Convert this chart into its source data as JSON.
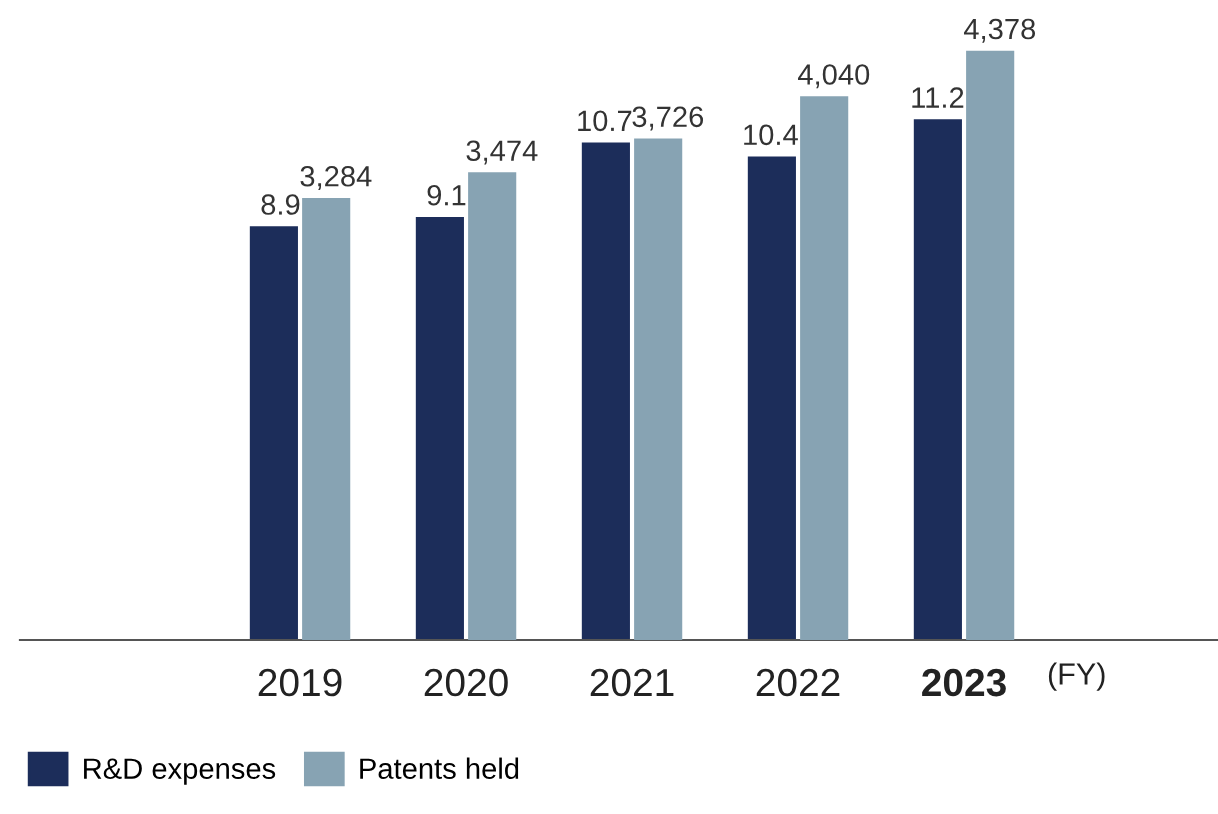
{
  "chart_data": {
    "type": "bar",
    "categories": [
      "2019",
      "2020",
      "2021",
      "2022",
      "2023"
    ],
    "xlabel": "(FY)",
    "series": [
      {
        "name": "R&D expenses",
        "color": "#1c2d5a",
        "values": [
          8.9,
          9.1,
          10.7,
          10.4,
          11.2
        ]
      },
      {
        "name": "Patents held",
        "color": "#87a3b3",
        "axis": "y2",
        "values": [
          3284,
          3474,
          3726,
          4040,
          4378
        ],
        "value_labels": [
          "3,284",
          "3,474",
          "3,726",
          "4,040",
          "4,378"
        ]
      }
    ],
    "tick_labels": "x",
    "data_labels": true,
    "legend": "bottom left",
    "grid": false
  }
}
